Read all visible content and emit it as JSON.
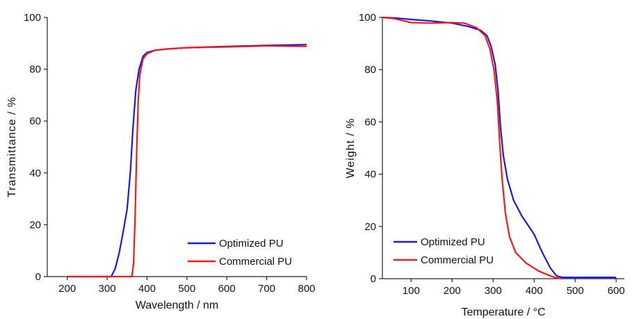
{
  "chart_data": [
    {
      "type": "line",
      "xlabel": "Wavelength / nm",
      "ylabel": "Transmittance / %",
      "xlim": [
        150,
        800
      ],
      "ylim": [
        0,
        100
      ],
      "xticks": [
        200,
        300,
        400,
        500,
        600,
        700,
        800
      ],
      "yticks": [
        0,
        20,
        40,
        60,
        80,
        100
      ],
      "legend_position": "bottom-right",
      "series": [
        {
          "name": "Optimized PU",
          "color": "#1a1adb",
          "points": [
            [
              200,
              0
            ],
            [
              300,
              0
            ],
            [
              310,
              0
            ],
            [
              320,
              3
            ],
            [
              330,
              9
            ],
            [
              340,
              17
            ],
            [
              350,
              26
            ],
            [
              358,
              40
            ],
            [
              365,
              58
            ],
            [
              372,
              72
            ],
            [
              380,
              80
            ],
            [
              390,
              85
            ],
            [
              400,
              86.5
            ],
            [
              420,
              87.3
            ],
            [
              450,
              87.8
            ],
            [
              500,
              88.3
            ],
            [
              600,
              88.8
            ],
            [
              700,
              89.2
            ],
            [
              800,
              89.5
            ]
          ]
        },
        {
          "name": "Commercial PU",
          "color": "#ee1c1c",
          "points": [
            [
              200,
              0
            ],
            [
              300,
              0
            ],
            [
              355,
              0
            ],
            [
              362,
              0
            ],
            [
              366,
              5
            ],
            [
              370,
              22
            ],
            [
              374,
              48
            ],
            [
              378,
              68
            ],
            [
              382,
              78
            ],
            [
              390,
              84
            ],
            [
              400,
              86
            ],
            [
              420,
              87.3
            ],
            [
              450,
              87.8
            ],
            [
              500,
              88.3
            ],
            [
              600,
              88.6
            ],
            [
              700,
              89
            ],
            [
              800,
              88.8
            ]
          ]
        }
      ]
    },
    {
      "type": "line",
      "xlabel": "Temperature / °C",
      "ylabel": "Weight / %",
      "xlim": [
        30,
        620
      ],
      "ylim": [
        0,
        100
      ],
      "xticks": [
        100,
        200,
        300,
        400,
        500,
        600
      ],
      "yticks": [
        0,
        20,
        40,
        60,
        80,
        100
      ],
      "legend_position": "bottom-left",
      "series": [
        {
          "name": "Optimized PU",
          "color": "#1a1adb",
          "points": [
            [
              30,
              100
            ],
            [
              60,
              99.8
            ],
            [
              100,
              99.2
            ],
            [
              150,
              98.6
            ],
            [
              200,
              97.8
            ],
            [
              240,
              96.5
            ],
            [
              270,
              95
            ],
            [
              285,
              93
            ],
            [
              295,
              89
            ],
            [
              305,
              82
            ],
            [
              312,
              72
            ],
            [
              318,
              58
            ],
            [
              325,
              47
            ],
            [
              335,
              38
            ],
            [
              350,
              30
            ],
            [
              370,
              24
            ],
            [
              400,
              17
            ],
            [
              420,
              10
            ],
            [
              440,
              4
            ],
            [
              455,
              1
            ],
            [
              470,
              0.5
            ],
            [
              600,
              0.5
            ]
          ]
        },
        {
          "name": "Commercial PU",
          "color": "#ee1c1c",
          "points": [
            [
              30,
              100
            ],
            [
              60,
              99.5
            ],
            [
              100,
              98
            ],
            [
              150,
              97.8
            ],
            [
              200,
              98
            ],
            [
              230,
              97.8
            ],
            [
              260,
              96
            ],
            [
              280,
              93
            ],
            [
              292,
              88
            ],
            [
              302,
              80
            ],
            [
              310,
              68
            ],
            [
              316,
              52
            ],
            [
              322,
              38
            ],
            [
              330,
              25
            ],
            [
              340,
              16
            ],
            [
              355,
              10
            ],
            [
              380,
              6
            ],
            [
              410,
              3
            ],
            [
              440,
              1
            ],
            [
              455,
              0.3
            ],
            [
              470,
              0
            ]
          ]
        }
      ]
    }
  ]
}
